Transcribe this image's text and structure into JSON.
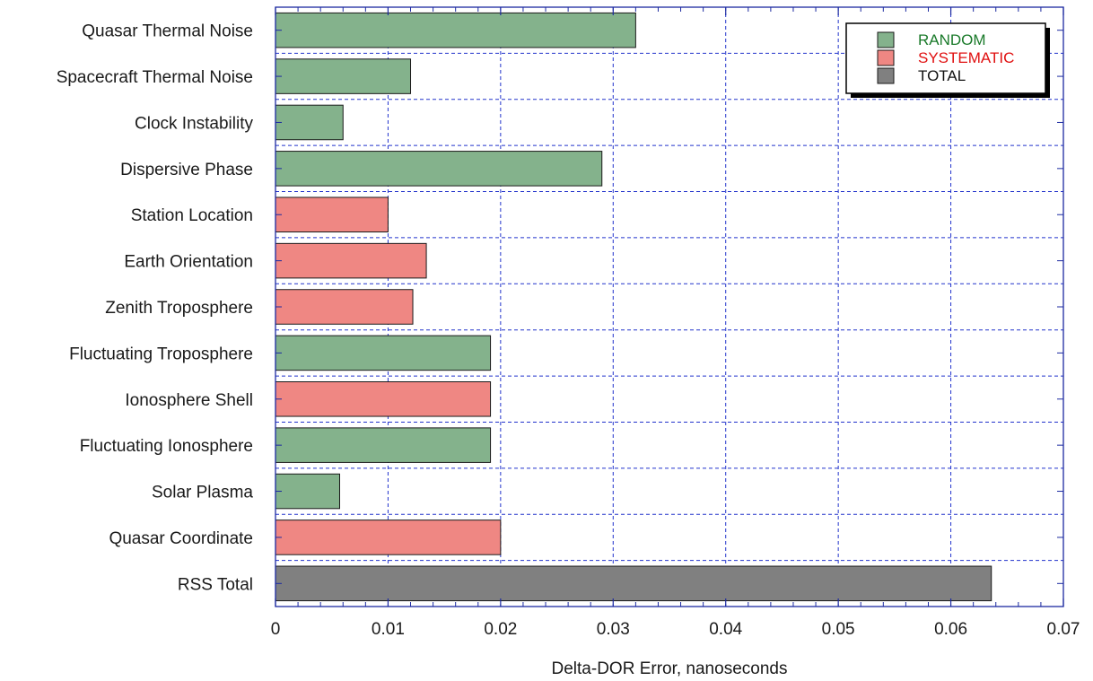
{
  "chart_data": {
    "type": "bar",
    "orientation": "horizontal",
    "title": "",
    "xlabel": "Delta-DOR Error, nanoseconds",
    "ylabel": "",
    "xlim": [
      0,
      0.07
    ],
    "xticks": [
      "0",
      "0.01",
      "0.02",
      "0.03",
      "0.04",
      "0.05",
      "0.06",
      "0.07"
    ],
    "grid": true,
    "legend_position": "top-right",
    "legend": [
      {
        "label": "RANDOM",
        "color": "#84b28c",
        "text_color": "#1a7a2a"
      },
      {
        "label": "SYSTEMATIC",
        "color": "#ef8783",
        "text_color": "#e01010"
      },
      {
        "label": "TOTAL",
        "color": "#808080",
        "text_color": "#111111"
      }
    ],
    "categories": [
      "Quasar Thermal Noise",
      "Spacecraft Thermal Noise",
      "Clock Instability",
      "Dispersive Phase",
      "Station Location",
      "Earth Orientation",
      "Zenith Troposphere",
      "Fluctuating Troposphere",
      "Ionosphere Shell",
      "Fluctuating Ionosphere",
      "Solar Plasma",
      "Quasar Coordinate",
      "RSS Total"
    ],
    "values": [
      0.032,
      0.012,
      0.006,
      0.029,
      0.01,
      0.0134,
      0.0122,
      0.0191,
      0.0191,
      0.0191,
      0.0057,
      0.02,
      0.0636
    ],
    "error_type": [
      "RANDOM",
      "RANDOM",
      "RANDOM",
      "RANDOM",
      "SYSTEMATIC",
      "SYSTEMATIC",
      "SYSTEMATIC",
      "RANDOM",
      "SYSTEMATIC",
      "RANDOM",
      "RANDOM",
      "SYSTEMATIC",
      "TOTAL"
    ]
  }
}
